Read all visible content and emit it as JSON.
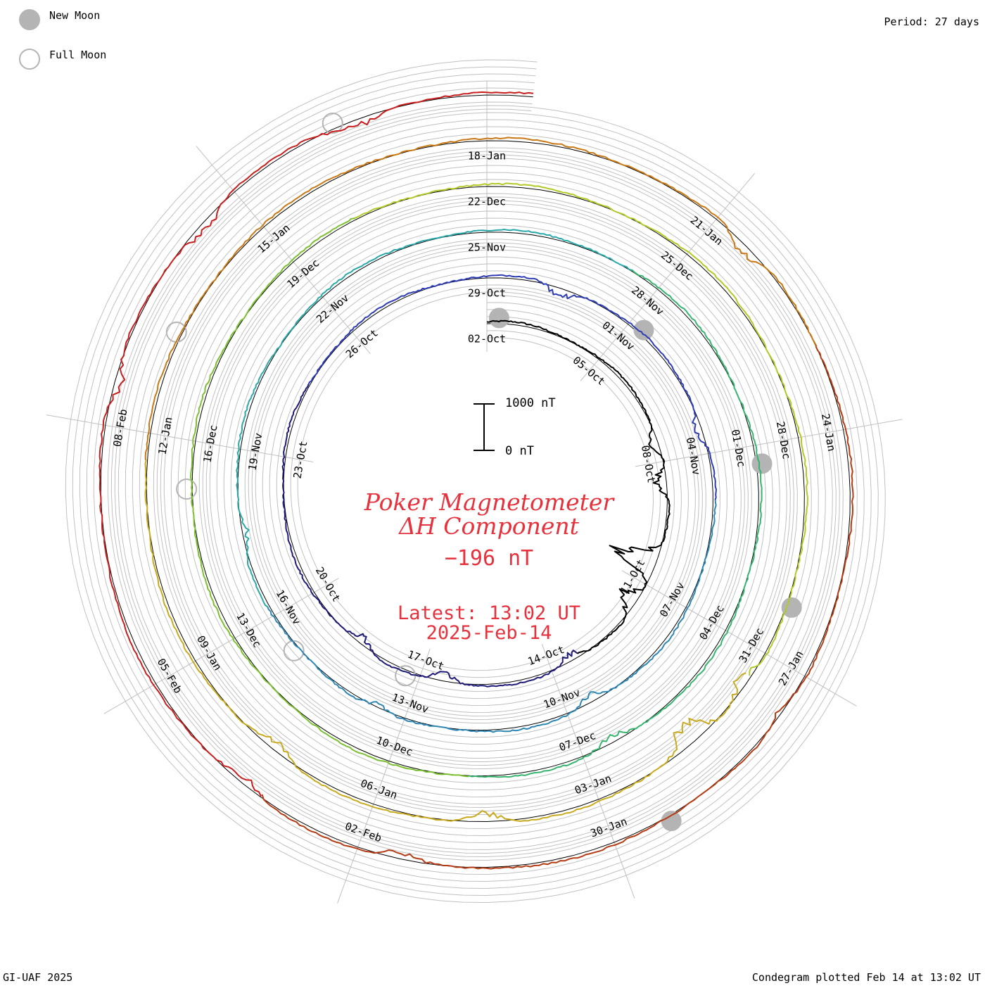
{
  "legend": {
    "new_moon": "New Moon",
    "full_moon": "Full Moon"
  },
  "period_label": "Period: 27 days",
  "scale_bar": {
    "top_label": "1000 nT",
    "bottom_label": "0 nT"
  },
  "title": {
    "line1": "Poker Magnetometer",
    "line2": "ΔH Component",
    "current_value": "−196 nT",
    "latest_line": "Latest: 13:02 UT",
    "date_line": "2025-Feb-14"
  },
  "footer": {
    "left": "GI-UAF 2025",
    "right": "Condegram plotted Feb 14 at 13:02 UT"
  },
  "colors": {
    "text_red": "#e6323c",
    "grid": "#c0c0c0",
    "moon": "#b4b4b4",
    "rotation_colors": [
      "#000000",
      "#1e1a78",
      "#2d3cb4",
      "#2e86b4",
      "#2aa8a8",
      "#36b46e",
      "#7cc032",
      "#b4c828",
      "#c8aa1e",
      "#c87814",
      "#b43c14",
      "#c81e1e"
    ]
  },
  "chart_data": {
    "type": "line",
    "subtype": "condegram-spiral",
    "period_days": 27,
    "angle_reference": "02-Oct at top, days increase clockwise",
    "rotations": [
      {
        "start": "02-Oct",
        "color": "#000000",
        "labels": [
          "02-Oct",
          "05-Oct",
          "08-Oct",
          "11-Oct",
          "14-Oct",
          "17-Oct",
          "20-Oct",
          "23-Oct",
          "26-Oct"
        ]
      },
      {
        "start": "29-Oct",
        "color": "#2d3cb4",
        "labels": [
          "29-Oct",
          "01-Nov",
          "04-Nov",
          "07-Nov",
          "10-Nov",
          "13-Nov",
          "16-Nov",
          "19-Nov",
          "22-Nov"
        ]
      },
      {
        "start": "25-Nov",
        "color": "#2aa8a8",
        "labels": [
          "25-Nov",
          "28-Nov",
          "01-Dec",
          "04-Dec",
          "07-Dec",
          "10-Dec",
          "13-Dec",
          "16-Dec",
          "19-Dec"
        ]
      },
      {
        "start": "22-Dec",
        "color": "#7cc032",
        "labels": [
          "22-Dec",
          "25-Dec",
          "28-Dec",
          "31-Dec",
          "03-Jan",
          "06-Jan",
          "09-Jan",
          "12-Jan",
          "15-Jan"
        ]
      },
      {
        "start": "18-Jan",
        "color": "#c8aa1e",
        "labels": [
          "18-Jan",
          "21-Jan",
          "24-Jan",
          "27-Jan",
          "30-Jan",
          "02-Feb",
          "05-Feb",
          "08-Feb"
        ]
      }
    ],
    "new_moons": [
      "02-Oct",
      "01-Nov",
      "01-Dec",
      "30-Dec",
      "29-Jan"
    ],
    "full_moons": [
      "17-Oct",
      "15-Nov",
      "15-Dec",
      "13-Jan",
      "12-Feb"
    ],
    "disturbances": [
      {
        "date": "07-Oct",
        "amplitude_nT": 300
      },
      {
        "date": "08-Oct",
        "amplitude_nT": 500
      },
      {
        "date": "10-Oct",
        "amplitude_nT": 1400
      },
      {
        "date": "11-Oct",
        "amplitude_nT": 600
      },
      {
        "date": "13-Oct",
        "amplitude_nT": 300
      },
      {
        "date": "16-Oct",
        "amplitude_nT": 300
      },
      {
        "date": "18-Oct",
        "amplitude_nT": 300
      },
      {
        "date": "30-Oct",
        "amplitude_nT": 350
      },
      {
        "date": "03-Nov",
        "amplitude_nT": 250
      },
      {
        "date": "09-Nov",
        "amplitude_nT": 250
      },
      {
        "date": "13-Nov",
        "amplitude_nT": 200
      },
      {
        "date": "17-Nov",
        "amplitude_nT": 200
      },
      {
        "date": "06-Dec",
        "amplitude_nT": 250
      },
      {
        "date": "31-Dec",
        "amplitude_nT": 350
      },
      {
        "date": "01-Jan",
        "amplitude_nT": 700
      },
      {
        "date": "04-Jan",
        "amplitude_nT": 350
      },
      {
        "date": "07-Jan",
        "amplitude_nT": 300
      },
      {
        "date": "21-Jan",
        "amplitude_nT": 350
      },
      {
        "date": "27-Jan",
        "amplitude_nT": 200
      },
      {
        "date": "01-Feb",
        "amplitude_nT": 250
      },
      {
        "date": "03-Feb",
        "amplitude_nT": 250
      },
      {
        "date": "08-Feb",
        "amplitude_nT": 300
      },
      {
        "date": "10-Feb",
        "amplitude_nT": 300
      },
      {
        "date": "12-Feb",
        "amplitude_nT": 300
      }
    ],
    "latest_value_nT": -196,
    "scale_nT": [
      0,
      1000
    ]
  }
}
